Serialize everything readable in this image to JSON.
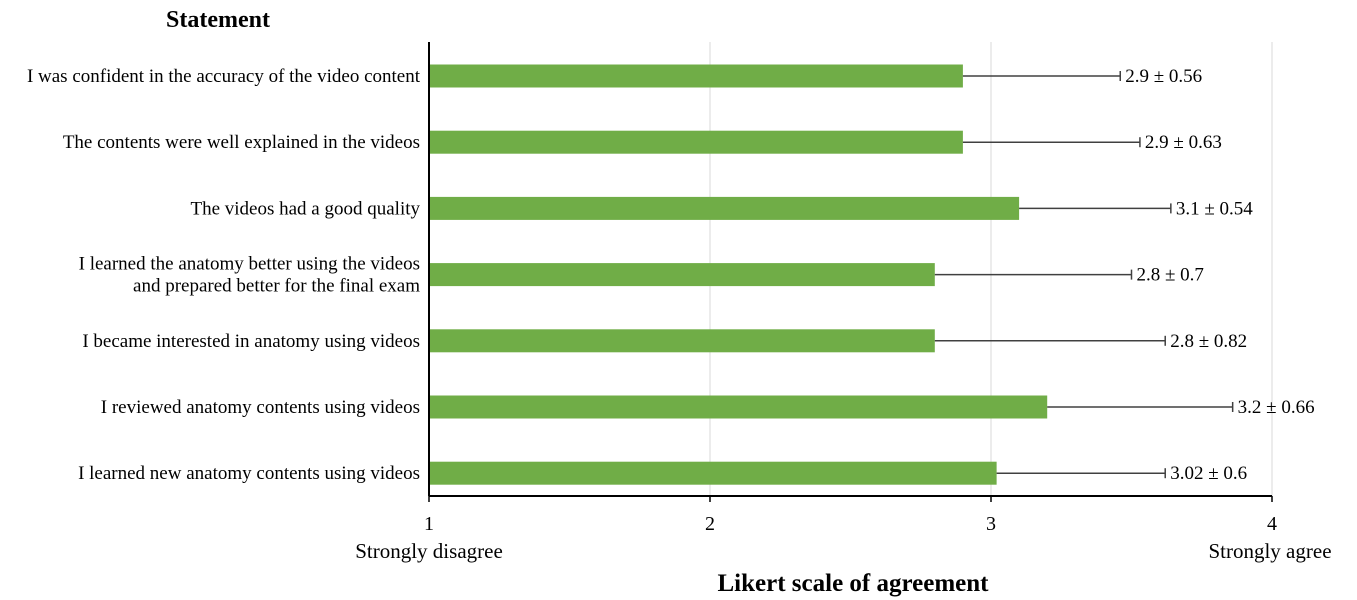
{
  "chart_data": {
    "type": "bar",
    "orientation": "horizontal",
    "title": "Statement",
    "xlabel": "Likert scale of agreement",
    "xlim": [
      1,
      4
    ],
    "xticks": [
      1,
      2,
      3,
      4
    ],
    "x_anchor_labels": [
      {
        "x": 1,
        "label": "Strongly disagree"
      },
      {
        "x": 4,
        "label": "Strongly agree"
      }
    ],
    "categories": [
      [
        "I was confident in the accuracy of the video content"
      ],
      [
        "The contents were well explained in the videos"
      ],
      [
        "The videos had a good quality"
      ],
      [
        "I learned the anatomy better using the videos",
        "and prepared better for the final exam"
      ],
      [
        "I became interested in anatomy using videos"
      ],
      [
        "I reviewed anatomy contents using videos"
      ],
      [
        "I learned new anatomy contents using videos"
      ]
    ],
    "values": [
      2.9,
      2.9,
      3.1,
      2.8,
      2.8,
      3.2,
      3.02
    ],
    "errors": [
      0.56,
      0.63,
      0.54,
      0.7,
      0.82,
      0.66,
      0.6
    ],
    "value_labels": [
      "2.9 ± 0.56",
      "2.9 ± 0.63",
      "3.1 ± 0.54",
      "2.8 ± 0.7",
      "2.8 ± 0.82",
      "3.2 ± 0.66",
      "3.02 ± 0.6"
    ],
    "colors": {
      "bar": "#70ad47",
      "error": "#404040",
      "axis": "#000000",
      "grid": "#d9d9d9"
    },
    "grid": true
  }
}
